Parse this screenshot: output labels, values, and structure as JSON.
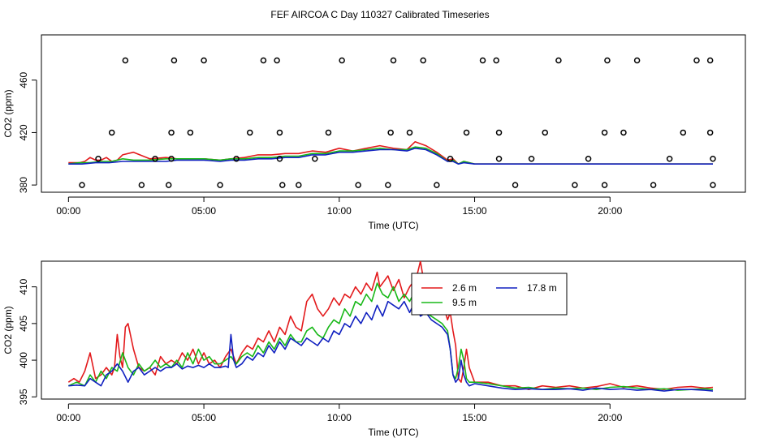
{
  "page": {
    "title": "FEF AIRCOA C  Day 110327  Calibrated Timeseries"
  },
  "colors": {
    "red": "#e31a1c",
    "green": "#18b818",
    "blue": "#1020c0",
    "axis": "#000000"
  },
  "chart_data": [
    {
      "type": "line",
      "name": "top",
      "xlabel": "Time (UTC)",
      "ylabel": "CO2 (ppm)",
      "xlim": [
        -1.0,
        25.0
      ],
      "ylim": [
        374.5,
        494.5
      ],
      "xticks": [
        0,
        5,
        10,
        15,
        20
      ],
      "xtick_labels": [
        "00:00",
        "05:00",
        "10:00",
        "15:00",
        "20:00"
      ],
      "yticks": [
        380,
        420,
        460
      ],
      "ytick_labels": [
        "380",
        "420",
        "460"
      ],
      "series": [
        {
          "name": "2.6 m",
          "color": "red",
          "x": [
            0,
            0.4,
            0.6,
            0.8,
            1.0,
            1.2,
            1.4,
            1.6,
            1.8,
            2.0,
            2.4,
            3.0,
            3.6,
            4.0,
            5.0,
            5.6,
            6.0,
            6.5,
            7.0,
            7.5,
            8.0,
            8.5,
            9.0,
            9.5,
            10.0,
            10.5,
            11.0,
            11.5,
            12.0,
            12.5,
            12.8,
            13.2,
            13.6,
            14.0,
            14.2,
            14.4,
            14.6,
            15.0,
            16,
            18,
            20,
            22,
            23.8
          ],
          "y": [
            397,
            397,
            398,
            401,
            399,
            399,
            401,
            398,
            399,
            403,
            405,
            400,
            401,
            400,
            400,
            399,
            400,
            401,
            403,
            403,
            404,
            404,
            406,
            405,
            408,
            406,
            408,
            410,
            408,
            407,
            413,
            410,
            405,
            399,
            400,
            396,
            398,
            396,
            396,
            396,
            396,
            396,
            396
          ]
        },
        {
          "name": "9.5 m",
          "color": "green",
          "x": [
            0,
            0.4,
            0.8,
            1.2,
            1.6,
            2.0,
            2.4,
            3.0,
            3.6,
            4.0,
            5.0,
            5.6,
            6.0,
            6.5,
            7.0,
            7.5,
            8.0,
            8.5,
            9.0,
            9.5,
            10.0,
            10.5,
            11.0,
            11.5,
            12.0,
            12.5,
            12.8,
            13.2,
            13.6,
            14.0,
            14.2,
            14.4,
            14.6,
            15.0,
            16,
            18,
            20,
            22,
            23.8
          ],
          "y": [
            396,
            397,
            397,
            398,
            398,
            400,
            399,
            399,
            400,
            400,
            400,
            399,
            400,
            400,
            401,
            401,
            402,
            402,
            404,
            404,
            406,
            406,
            407,
            408,
            407,
            407,
            409,
            408,
            404,
            398,
            399,
            396,
            398,
            396,
            396,
            396,
            396,
            396,
            396
          ]
        },
        {
          "name": "17.8 m",
          "color": "blue",
          "x": [
            0,
            0.5,
            1.0,
            1.5,
            2.0,
            2.5,
            3.0,
            3.6,
            4.0,
            5.0,
            5.6,
            6.0,
            6.5,
            7.0,
            7.5,
            8.0,
            8.5,
            9.0,
            9.5,
            10.0,
            10.5,
            11.0,
            11.5,
            12.0,
            12.5,
            12.8,
            13.2,
            13.6,
            14.0,
            14.2,
            14.4,
            14.6,
            15.0,
            16,
            18,
            20,
            22,
            23.8
          ],
          "y": [
            396,
            396,
            397,
            397,
            398,
            398,
            398,
            398,
            399,
            399,
            398,
            399,
            399,
            400,
            400,
            401,
            401,
            403,
            403,
            405,
            405,
            406,
            407,
            407,
            406,
            408,
            407,
            403,
            398,
            398,
            396,
            397,
            396,
            396,
            396,
            396,
            396,
            396
          ]
        }
      ],
      "scatter": {
        "color": "black",
        "x": [
          0.5,
          1.1,
          1.6,
          2.1,
          2.7,
          3.2,
          3.7,
          3.8,
          3.8,
          3.9,
          4.5,
          5.0,
          5.6,
          6.2,
          6.7,
          7.2,
          7.7,
          7.8,
          7.8,
          7.9,
          8.5,
          9.1,
          9.6,
          10.1,
          10.7,
          11.8,
          11.9,
          12.0,
          12.6,
          13.1,
          13.6,
          14.1,
          14.7,
          15.3,
          15.8,
          15.9,
          15.9,
          16.5,
          17.1,
          17.6,
          18.1,
          18.7,
          19.2,
          19.8,
          19.8,
          19.9,
          20.5,
          21.0,
          21.6,
          22.2,
          22.7,
          23.2,
          23.7,
          23.7,
          23.8,
          23.8
        ],
        "y": [
          380,
          400,
          420,
          475,
          380,
          400,
          380,
          400,
          420,
          475,
          420,
          475,
          380,
          400,
          420,
          475,
          475,
          420,
          400,
          380,
          380,
          400,
          420,
          475,
          380,
          380,
          420,
          475,
          420,
          475,
          380,
          400,
          420,
          475,
          475,
          420,
          400,
          380,
          400,
          420,
          475,
          380,
          400,
          380,
          420,
          475,
          420,
          475,
          380,
          400,
          420,
          475,
          475,
          420,
          400,
          380
        ]
      }
    },
    {
      "type": "line",
      "name": "bottom",
      "xlabel": "Time (UTC)",
      "ylabel": "CO2 (ppm)",
      "xlim": [
        -1.0,
        25.0
      ],
      "ylim": [
        394.7,
        413.5
      ],
      "xticks": [
        0,
        5,
        10,
        15,
        20
      ],
      "xtick_labels": [
        "00:00",
        "05:00",
        "10:00",
        "15:00",
        "20:00"
      ],
      "yticks": [
        395,
        400,
        405,
        410
      ],
      "ytick_labels": [
        "395",
        "400",
        "405",
        "410"
      ],
      "legend": {
        "position": "top-right",
        "entries": [
          {
            "label": "2.6 m",
            "color": "red"
          },
          {
            "label": "9.5 m",
            "color": "green"
          },
          {
            "label": "17.8 m",
            "color": "blue"
          }
        ]
      },
      "series": [
        {
          "name": "2.6 m",
          "color": "red",
          "x": [
            0.0,
            0.2,
            0.4,
            0.6,
            0.8,
            1.0,
            1.2,
            1.4,
            1.5,
            1.6,
            1.7,
            1.8,
            1.9,
            2.0,
            2.1,
            2.2,
            2.4,
            2.6,
            2.8,
            3.0,
            3.2,
            3.4,
            3.6,
            3.8,
            4.0,
            4.2,
            4.4,
            4.6,
            4.8,
            5.0,
            5.2,
            5.4,
            5.6,
            5.8,
            6.0,
            6.2,
            6.4,
            6.6,
            6.8,
            7.0,
            7.2,
            7.4,
            7.6,
            7.8,
            8.0,
            8.2,
            8.4,
            8.6,
            8.8,
            9.0,
            9.2,
            9.4,
            9.6,
            9.8,
            10.0,
            10.2,
            10.4,
            10.6,
            10.8,
            11.0,
            11.2,
            11.4,
            11.5,
            11.6,
            11.8,
            12.0,
            12.2,
            12.4,
            12.6,
            12.8,
            12.9,
            13.0,
            13.2,
            13.4,
            13.6,
            13.8,
            14.0,
            14.1,
            14.2,
            14.3,
            14.4,
            14.5,
            14.6,
            14.7,
            14.8,
            15.0,
            15.5,
            16,
            16.5,
            17,
            17.5,
            18,
            18.5,
            19,
            19.5,
            20,
            20.5,
            21,
            21.5,
            22,
            22.5,
            23,
            23.5,
            23.8
          ],
          "y": [
            397.0,
            397.5,
            397.0,
            398.5,
            401.0,
            397.5,
            398.0,
            399.0,
            398.5,
            398.0,
            399.0,
            403.5,
            400.5,
            399.0,
            404.5,
            405.0,
            401.5,
            399.0,
            398.5,
            399.0,
            398.0,
            400.5,
            399.5,
            400.0,
            399.5,
            401.0,
            400.0,
            401.5,
            399.5,
            401.0,
            399.5,
            400.0,
            399.0,
            400.5,
            401.5,
            399.5,
            401.0,
            402.0,
            401.5,
            403.0,
            402.5,
            404.0,
            402.5,
            404.5,
            403.5,
            406.0,
            404.5,
            404.0,
            408.0,
            409.0,
            407.0,
            406.0,
            407.0,
            408.5,
            407.5,
            409.0,
            408.5,
            410.0,
            409.0,
            410.5,
            409.5,
            412.0,
            410.0,
            410.5,
            411.5,
            409.5,
            411.0,
            408.5,
            410.0,
            411.0,
            412.0,
            413.5,
            409.0,
            407.0,
            406.5,
            408.0,
            405.5,
            406.5,
            404.0,
            402.0,
            397.5,
            397.0,
            399.0,
            401.5,
            399.0,
            397.0,
            397.0,
            396.5,
            396.5,
            396.0,
            396.5,
            396.3,
            396.5,
            396.2,
            396.4,
            396.8,
            396.3,
            396.5,
            396.2,
            396.0,
            396.3,
            396.4,
            396.2,
            396.3
          ]
        },
        {
          "name": "9.5 m",
          "color": "green",
          "x": [
            0.0,
            0.3,
            0.6,
            0.8,
            1.0,
            1.2,
            1.4,
            1.6,
            1.8,
            2.0,
            2.2,
            2.4,
            2.6,
            2.8,
            3.0,
            3.2,
            3.4,
            3.6,
            3.8,
            4.0,
            4.2,
            4.4,
            4.6,
            4.8,
            5.0,
            5.2,
            5.4,
            5.6,
            5.8,
            6.0,
            6.2,
            6.4,
            6.6,
            6.8,
            7.0,
            7.2,
            7.4,
            7.6,
            7.8,
            8.0,
            8.2,
            8.4,
            8.6,
            8.8,
            9.0,
            9.2,
            9.4,
            9.6,
            9.8,
            10.0,
            10.2,
            10.4,
            10.6,
            10.8,
            11.0,
            11.2,
            11.4,
            11.6,
            11.8,
            12.0,
            12.2,
            12.4,
            12.6,
            12.8,
            13.0,
            13.2,
            13.4,
            13.6,
            13.8,
            14.0,
            14.1,
            14.2,
            14.3,
            14.4,
            14.5,
            14.6,
            14.7,
            14.8,
            15.0,
            15.5,
            16,
            16.5,
            17,
            17.5,
            18,
            18.5,
            19,
            19.5,
            20,
            20.5,
            21,
            21.5,
            22,
            22.5,
            23,
            23.5,
            23.8
          ],
          "y": [
            396.5,
            397.0,
            396.5,
            398.0,
            397.0,
            398.5,
            397.5,
            399.0,
            398.5,
            401.0,
            399.0,
            398.0,
            399.5,
            398.5,
            399.0,
            400.0,
            399.0,
            399.5,
            399.0,
            400.0,
            399.0,
            401.0,
            399.5,
            401.5,
            400.0,
            400.5,
            399.5,
            399.5,
            400.0,
            400.5,
            399.5,
            400.5,
            401.0,
            400.5,
            402.0,
            401.0,
            402.5,
            401.5,
            403.0,
            402.0,
            403.5,
            402.5,
            402.5,
            404.0,
            404.5,
            403.5,
            403.0,
            404.5,
            405.5,
            405.0,
            407.0,
            406.0,
            408.0,
            407.5,
            409.0,
            408.0,
            410.5,
            409.0,
            408.5,
            410.0,
            408.0,
            409.0,
            408.0,
            409.5,
            407.5,
            406.5,
            406.0,
            405.5,
            405.0,
            404.0,
            401.5,
            398.0,
            397.5,
            399.0,
            401.5,
            400.0,
            397.5,
            397.0,
            397.0,
            396.8,
            396.5,
            396.2,
            396.3,
            396.0,
            396.2,
            396.1,
            396.2,
            396.0,
            396.3,
            396.4,
            396.2,
            396.0,
            396.1,
            395.9,
            396.0,
            396.1,
            396.0
          ]
        },
        {
          "name": "17.8 m",
          "color": "blue",
          "x": [
            0.0,
            0.3,
            0.6,
            0.8,
            1.0,
            1.2,
            1.4,
            1.6,
            1.8,
            2.0,
            2.2,
            2.4,
            2.6,
            2.8,
            3.0,
            3.2,
            3.4,
            3.6,
            3.8,
            4.0,
            4.2,
            4.4,
            4.6,
            4.8,
            5.0,
            5.2,
            5.4,
            5.6,
            5.8,
            5.9,
            6.0,
            6.1,
            6.2,
            6.4,
            6.6,
            6.8,
            7.0,
            7.2,
            7.4,
            7.6,
            7.8,
            8.0,
            8.2,
            8.4,
            8.6,
            8.8,
            9.0,
            9.2,
            9.4,
            9.6,
            9.8,
            10.0,
            10.2,
            10.4,
            10.6,
            10.8,
            11.0,
            11.2,
            11.4,
            11.6,
            11.8,
            12.0,
            12.2,
            12.4,
            12.6,
            12.8,
            13.0,
            13.2,
            13.4,
            13.6,
            13.8,
            14.0,
            14.1,
            14.2,
            14.3,
            14.4,
            14.5,
            14.6,
            14.7,
            14.8,
            15.0,
            15.5,
            16,
            16.5,
            17,
            17.5,
            18,
            18.5,
            19,
            19.5,
            20,
            20.5,
            21,
            21.5,
            22,
            22.5,
            23,
            23.5,
            23.8
          ],
          "y": [
            396.5,
            396.6,
            396.5,
            397.5,
            397.0,
            396.5,
            398.0,
            398.5,
            399.5,
            398.5,
            397.0,
            398.5,
            399.0,
            398.0,
            398.5,
            399.0,
            398.5,
            399.0,
            399.0,
            399.5,
            398.8,
            399.2,
            399.0,
            399.3,
            399.0,
            399.5,
            399.0,
            399.0,
            399.2,
            399.0,
            403.5,
            400.0,
            399.0,
            399.5,
            400.5,
            400.0,
            401.0,
            400.5,
            402.0,
            401.0,
            402.5,
            401.5,
            403.0,
            402.5,
            402.0,
            403.0,
            402.5,
            402.0,
            403.0,
            402.5,
            404.0,
            403.5,
            405.0,
            404.5,
            406.0,
            405.0,
            406.5,
            405.5,
            407.5,
            406.0,
            408.0,
            407.5,
            407.0,
            408.0,
            406.5,
            408.0,
            406.0,
            406.5,
            405.5,
            405.0,
            404.5,
            403.5,
            401.5,
            398.0,
            397.0,
            397.5,
            400.0,
            398.0,
            397.0,
            396.5,
            396.8,
            396.5,
            396.2,
            396.0,
            396.1,
            396.0,
            396.0,
            396.1,
            395.9,
            396.2,
            396.0,
            396.1,
            395.9,
            396.0,
            395.8,
            396.0,
            396.0,
            395.9,
            395.8
          ]
        }
      ]
    }
  ]
}
